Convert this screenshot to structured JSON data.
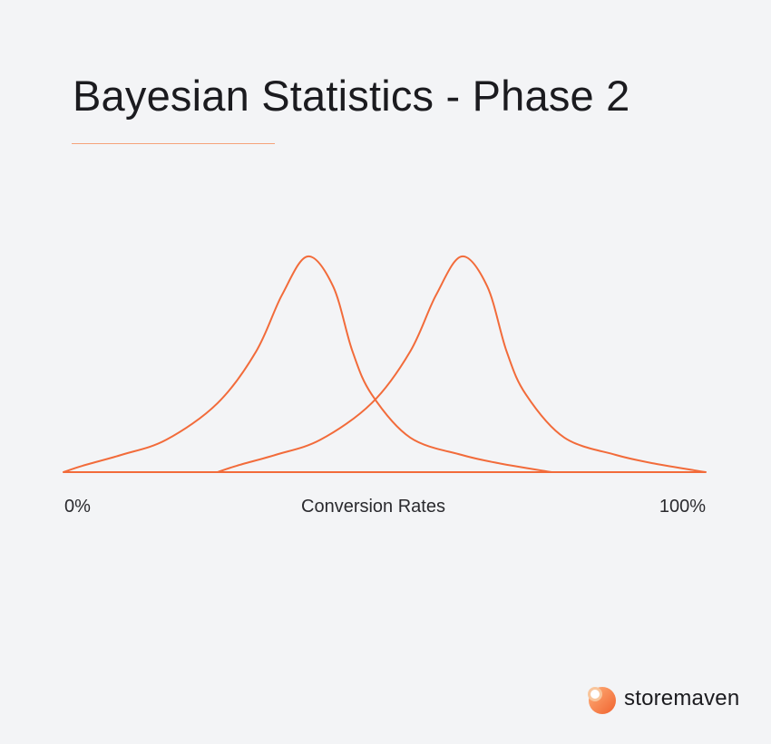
{
  "title": "Bayesian Statistics - Phase 2",
  "accent_color": "#f26b3a",
  "brand": {
    "name": "storemaven",
    "logo_icon": "storemaven-logo-icon"
  },
  "chart_data": {
    "type": "line",
    "xlabel": "Conversion Rates",
    "ylabel": "",
    "x_tick_labels": [
      "0%",
      "100%"
    ],
    "xlim": [
      0,
      100
    ],
    "grid": false,
    "legend": "none",
    "series": [
      {
        "x": [
          0,
          3,
          9,
          16,
          24,
          30,
          34,
          38,
          42,
          45,
          48,
          54,
          62,
          68,
          76
        ],
        "y": [
          0,
          0.03,
          0.08,
          0.15,
          0.32,
          0.56,
          0.82,
          1.0,
          0.86,
          0.56,
          0.36,
          0.16,
          0.08,
          0.04,
          0
        ]
      },
      {
        "x": [
          24,
          27,
          33,
          40,
          48,
          54,
          58,
          62,
          66,
          69,
          72,
          78,
          86,
          92,
          100
        ],
        "y": [
          0,
          0.03,
          0.08,
          0.15,
          0.32,
          0.56,
          0.82,
          1.0,
          0.86,
          0.56,
          0.36,
          0.16,
          0.08,
          0.04,
          0
        ]
      }
    ]
  }
}
